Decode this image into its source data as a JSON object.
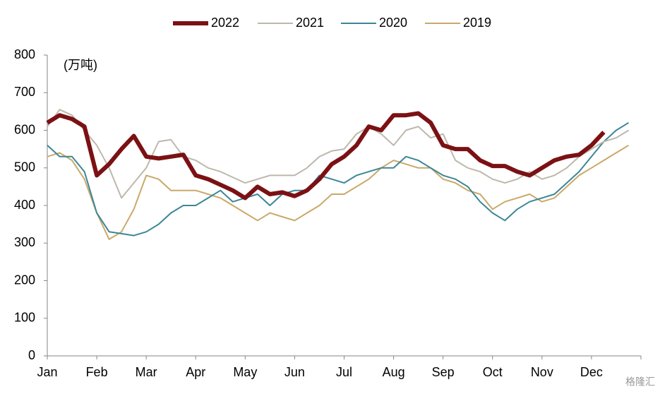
{
  "chart_data": {
    "type": "line",
    "annotation": "(万吨)",
    "watermark": "格隆汇",
    "categories": [
      "Jan",
      null,
      null,
      null,
      "Feb",
      null,
      null,
      null,
      "Mar",
      null,
      null,
      null,
      "Apr",
      null,
      null,
      null,
      "May",
      null,
      null,
      null,
      "Jun",
      null,
      null,
      null,
      "Jul",
      null,
      null,
      null,
      "Aug",
      null,
      null,
      null,
      "Sep",
      null,
      null,
      null,
      "Oct",
      null,
      null,
      null,
      "Nov",
      null,
      null,
      null,
      "Dec",
      null,
      null,
      null
    ],
    "series": [
      {
        "name": "2022",
        "color": "#7b1114",
        "width": 6,
        "values": [
          620,
          640,
          630,
          610,
          480,
          510,
          550,
          585,
          530,
          525,
          530,
          535,
          480,
          470,
          455,
          440,
          420,
          450,
          430,
          435,
          425,
          440,
          470,
          510,
          530,
          560,
          610,
          600,
          640,
          640,
          645,
          620,
          560,
          550,
          550,
          520,
          505,
          505,
          490,
          480,
          500,
          520,
          530,
          535,
          560,
          595,
          null,
          null
        ]
      },
      {
        "name": "2021",
        "color": "#bdb8ab",
        "width": 2,
        "values": [
          610,
          655,
          640,
          600,
          560,
          500,
          420,
          460,
          500,
          570,
          575,
          530,
          520,
          500,
          490,
          475,
          460,
          470,
          480,
          480,
          480,
          500,
          530,
          545,
          550,
          590,
          610,
          590,
          560,
          600,
          610,
          580,
          590,
          520,
          500,
          490,
          470,
          460,
          470,
          490,
          470,
          480,
          500,
          530,
          550,
          570,
          580,
          600
        ]
      },
      {
        "name": "2020",
        "color": "#3c8797",
        "width": 2,
        "values": [
          560,
          530,
          530,
          490,
          380,
          330,
          325,
          320,
          330,
          350,
          380,
          400,
          400,
          420,
          440,
          410,
          420,
          430,
          400,
          430,
          440,
          440,
          480,
          470,
          460,
          480,
          490,
          500,
          500,
          530,
          520,
          500,
          480,
          470,
          450,
          410,
          380,
          360,
          390,
          410,
          420,
          430,
          460,
          490,
          530,
          570,
          600,
          620
        ]
      },
      {
        "name": "2019",
        "color": "#c9a96a",
        "width": 2,
        "values": [
          530,
          540,
          520,
          470,
          380,
          310,
          330,
          390,
          480,
          470,
          440,
          440,
          440,
          430,
          420,
          400,
          380,
          360,
          380,
          370,
          360,
          380,
          400,
          430,
          430,
          450,
          470,
          500,
          520,
          510,
          500,
          500,
          470,
          460,
          440,
          430,
          390,
          410,
          420,
          430,
          410,
          420,
          450,
          480,
          500,
          520,
          540,
          560
        ]
      }
    ],
    "ylim": [
      0,
      800
    ],
    "yticks": [
      0,
      100,
      200,
      300,
      400,
      500,
      600,
      700,
      800
    ],
    "legend": "top"
  }
}
